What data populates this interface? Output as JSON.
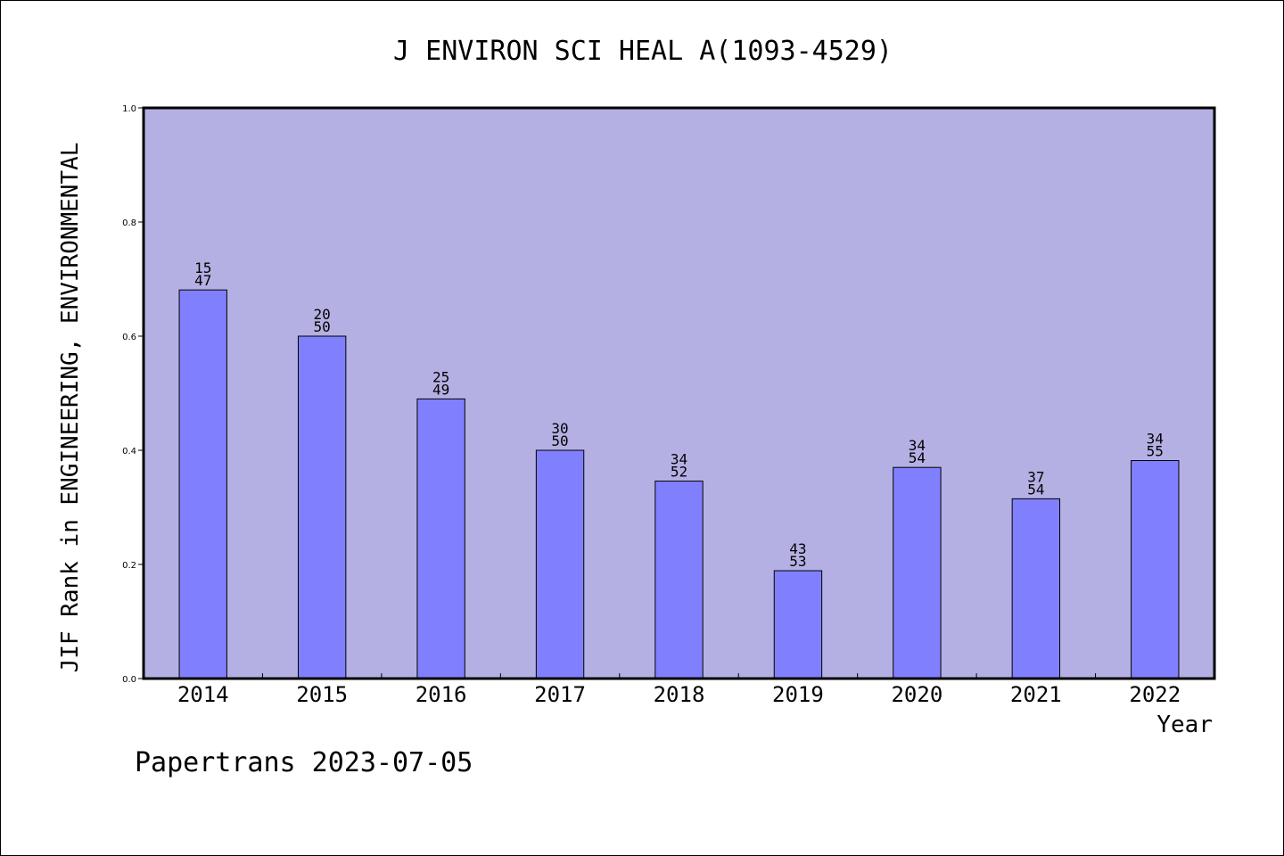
{
  "chart_data": {
    "type": "bar",
    "title": "J ENVIRON SCI HEAL A(1093-4529)",
    "xlabel": "Year",
    "ylabel": "JIF Rank in ENGINEERING, ENVIRONMENTAL",
    "categories": [
      "2014",
      "2015",
      "2016",
      "2017",
      "2018",
      "2019",
      "2020",
      "2021",
      "2022"
    ],
    "values": [
      0.681,
      0.6,
      0.49,
      0.4,
      0.346,
      0.189,
      0.37,
      0.315,
      0.382
    ],
    "labels_top": [
      "15",
      "20",
      "25",
      "30",
      "34",
      "43",
      "34",
      "37",
      "34"
    ],
    "labels_bottom": [
      "47",
      "50",
      "49",
      "50",
      "52",
      "53",
      "54",
      "54",
      "55"
    ],
    "ylim": [
      0,
      1.0
    ],
    "yticks": [
      "0.0",
      "0.2",
      "0.4",
      "0.6",
      "0.8",
      "1.0"
    ],
    "grid": false,
    "colors": {
      "plot_background": "#b5b0e3",
      "bar_fill": "#8080ff",
      "bar_stroke": "#000000"
    }
  },
  "footer": "Papertrans 2023-07-05"
}
